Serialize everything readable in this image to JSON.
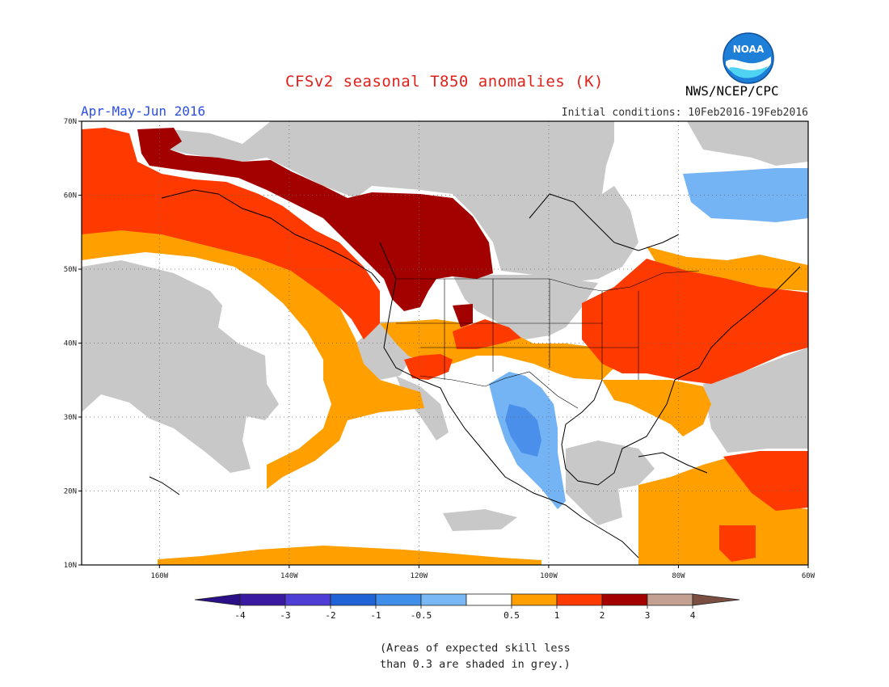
{
  "header": {
    "title": "CFSv2 seasonal T850 anomalies (K)",
    "period": "Apr-May-Jun 2016",
    "initial_conditions": "Initial conditions: 10Feb2016-19Feb2016",
    "agency": "NWS/NCEP/CPC",
    "logo_text": "NOAA"
  },
  "map": {
    "lon_range": [
      -172,
      -60
    ],
    "lat_range": [
      10,
      70
    ],
    "lat_labels": [
      "70N",
      "60N",
      "50N",
      "40N",
      "30N",
      "20N",
      "10N"
    ],
    "lon_labels": [
      "160W",
      "140W",
      "120W",
      "100W",
      "80W",
      "60W"
    ],
    "skill_mask_color": "#c8c8c8",
    "regions": [
      {
        "name": "warm-pacific-arc-0.5-1K",
        "level": "0.5 to 1",
        "color": "#ff9f00"
      },
      {
        "name": "warm-pacific-arc-1-2K",
        "level": "1 to 2",
        "color": "#ff3a00"
      },
      {
        "name": "warm-canada-2-3K",
        "level": "2 to 3",
        "color": "#a30000"
      },
      {
        "name": "warm-eastern-us-1-2K",
        "level": "1 to 2",
        "color": "#ff3a00"
      },
      {
        "name": "warm-southeast-0.5-1K",
        "level": "0.5 to 1",
        "color": "#ff9f00"
      },
      {
        "name": "cool-mexico-plateau",
        "level": "-1 to -0.5",
        "color": "#74b4f4"
      },
      {
        "name": "cool-mexico-core",
        "level": "-2 to -1",
        "color": "#4a90ea"
      },
      {
        "name": "cool-labrador",
        "level": "-1 to -0.5",
        "color": "#74b4f4"
      },
      {
        "name": "warm-caribbean-1-2K",
        "level": "1 to 2",
        "color": "#ff3a00"
      },
      {
        "name": "low-skill-grey",
        "level": "skill < 0.3",
        "color": "#c8c8c8"
      }
    ]
  },
  "legend": {
    "labels": [
      "-4",
      "-3",
      "-2",
      "-1",
      "-0.5",
      "0.5",
      "1",
      "2",
      "3",
      "4"
    ],
    "colors": [
      "#3a1aa0",
      "#4f3ed6",
      "#1f63d6",
      "#3e8eea",
      "#79b8f5",
      "#ffffff",
      "#ff9f00",
      "#ff3a00",
      "#a30000",
      "#c4a090"
    ],
    "low_arrow_color": "#2a0f86",
    "high_arrow_color": "#7a4e40"
  },
  "footnote": {
    "line1": "(Areas of expected skill less",
    "line2": "than 0.3 are shaded in grey.)"
  }
}
